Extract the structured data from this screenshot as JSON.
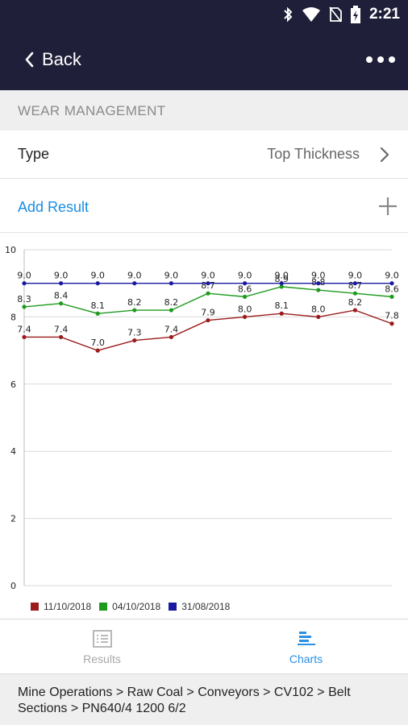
{
  "status_bar": {
    "time": "2:21",
    "icons": [
      "bluetooth-icon",
      "wifi-icon",
      "no-sim-icon",
      "battery-charging-icon"
    ]
  },
  "app_bar": {
    "back_label": "Back",
    "menu_icon": "more-horizontal-icon"
  },
  "section": {
    "title": "WEAR MANAGEMENT"
  },
  "type_row": {
    "label": "Type",
    "value": "Top Thickness"
  },
  "add_result": {
    "label": "Add Result"
  },
  "colors": {
    "header_bg": "#1f1f3a",
    "link_blue": "#1a8de0"
  },
  "chart_data": {
    "type": "line",
    "ylim": [
      0,
      10
    ],
    "y_ticks": [
      "0",
      "2",
      "4",
      "6",
      "8",
      "10"
    ],
    "grid": true,
    "legend_position": "bottom-left",
    "x": [
      1,
      2,
      3,
      4,
      5,
      6,
      7,
      8,
      9,
      10,
      11
    ],
    "series": [
      {
        "name": "11/10/2018",
        "color": "#9b1b1b",
        "values": [
          7.4,
          7.4,
          7.0,
          7.3,
          7.4,
          7.9,
          8.0,
          8.1,
          8.0,
          8.2,
          7.8
        ],
        "labels": [
          "7.4",
          "7.4",
          "7.0",
          "7.3",
          "7.4",
          "7.9",
          "8.0",
          "8.1",
          "8.0",
          "8.2",
          "7.8"
        ]
      },
      {
        "name": "04/10/2018",
        "color": "#1e9b1e",
        "values": [
          8.3,
          8.4,
          8.1,
          8.2,
          8.2,
          8.7,
          8.6,
          8.9,
          8.8,
          8.7,
          8.6
        ],
        "labels": [
          "8.3",
          "8.4",
          "8.1",
          "8.2",
          "8.2",
          "8.7",
          "8.6",
          "8.9",
          "8.8",
          "8.7",
          "8.6"
        ]
      },
      {
        "name": "31/08/2018",
        "color": "#1a1aa0",
        "values": [
          9.0,
          9.0,
          9.0,
          9.0,
          9.0,
          9.0,
          9.0,
          9.0,
          9.0,
          9.0,
          9.0
        ],
        "labels": [
          "9.0",
          "9.0",
          "9.0",
          "9.0",
          "9.0",
          "9.0",
          "9.0",
          "9.0",
          "9.0",
          "9.0",
          "9.0"
        ]
      }
    ]
  },
  "tabs": [
    {
      "label": "Results",
      "icon": "list-icon",
      "active": false
    },
    {
      "label": "Charts",
      "icon": "chart-icon",
      "active": true
    }
  ],
  "breadcrumb": {
    "text": "Mine Operations > Raw Coal > Conveyors > CV102 > Belt Sections > PN640/4 1200 6/2"
  }
}
